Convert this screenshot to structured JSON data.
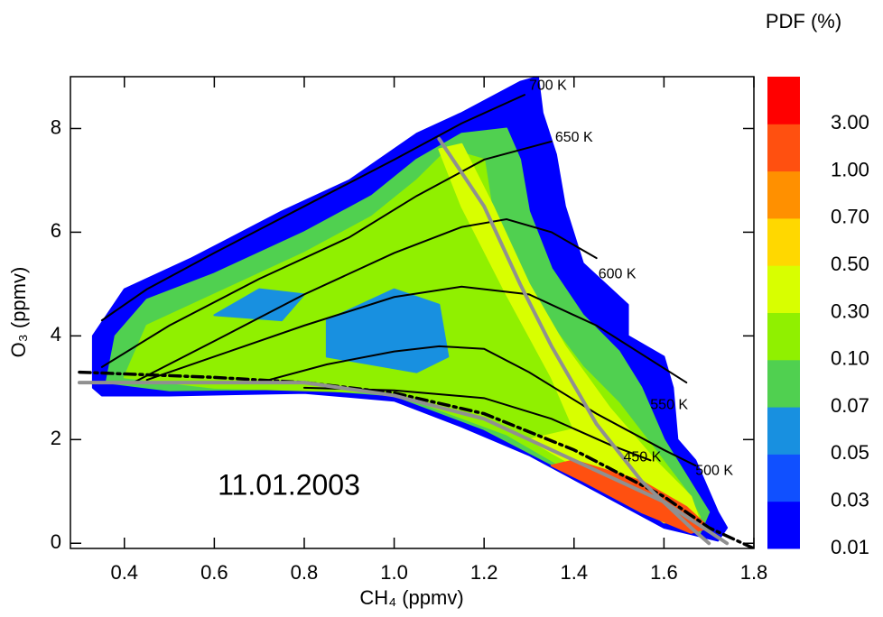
{
  "chart_data": {
    "type": "contour",
    "annotation": "11.01.2003",
    "x_label": "CH₄ (ppmv)",
    "y_label": "O₃ (ppmv)",
    "xlim": [
      0.28,
      1.8
    ],
    "ylim": [
      -0.1,
      9
    ],
    "xticks": [
      0.4,
      0.6,
      0.8,
      {
        "value": 1.0,
        "label": "1.0"
      },
      1.2,
      1.4,
      1.6,
      1.8
    ],
    "yticks": [
      0,
      2,
      4,
      6,
      8
    ],
    "colorbar": {
      "title": "PDF (%)",
      "colors": [
        "#0000ff",
        "#1050ff",
        "#1890e0",
        "#50d050",
        "#90f000",
        "#d8ff00",
        "#ffd800",
        "#ff9000",
        "#ff5010",
        "#ff0000"
      ],
      "ticks": [
        0.01,
        0.03,
        0.05,
        0.07,
        {
          "value": 0.1,
          "label": "0.10"
        },
        {
          "value": 0.3,
          "label": "0.30"
        },
        {
          "value": 0.5,
          "label": "0.50"
        },
        {
          "value": 0.7,
          "label": "0.70"
        },
        {
          "value": 1,
          "label": "1.00"
        },
        {
          "value": 3,
          "label": "3.00"
        }
      ]
    },
    "regions": [
      {
        "color": "#0000ff",
        "x": [
          0.33,
          0.33,
          0.4,
          0.55,
          0.75,
          0.9,
          1.05,
          1.15,
          1.28,
          1.32,
          1.33,
          1.36,
          1.38,
          1.42,
          1.52,
          1.52,
          1.6,
          1.62,
          1.63,
          1.67,
          1.7,
          1.72,
          1.74,
          1.72,
          1.6,
          1.45,
          1.3,
          1.15,
          1.0,
          0.8,
          0.5,
          0.35
        ],
        "y": [
          3.0,
          4.0,
          4.9,
          5.5,
          6.4,
          7.0,
          7.9,
          8.3,
          8.9,
          9.0,
          8.3,
          7.5,
          6.5,
          5.4,
          4.6,
          4.0,
          3.6,
          3.0,
          2.0,
          1.6,
          1.0,
          0.6,
          0.3,
          0.05,
          0.3,
          1.0,
          1.7,
          2.25,
          2.75,
          2.9,
          2.85,
          2.85
        ]
      },
      {
        "color": "#50d050",
        "x": [
          0.36,
          0.38,
          0.45,
          0.6,
          0.8,
          0.95,
          1.05,
          1.15,
          1.25,
          1.28,
          1.3,
          1.35,
          1.42,
          1.5,
          1.55,
          1.6,
          1.65,
          1.7,
          1.68,
          1.55,
          1.4,
          1.2,
          1.0,
          0.8,
          0.5
        ],
        "y": [
          3.1,
          4.0,
          4.7,
          5.2,
          6.0,
          6.7,
          7.4,
          7.9,
          8.0,
          7.4,
          6.4,
          5.3,
          4.4,
          3.7,
          3.0,
          2.0,
          1.3,
          0.6,
          0.2,
          0.6,
          1.3,
          2.2,
          2.85,
          2.98,
          2.95
        ]
      },
      {
        "color": "#90f000",
        "x": [
          0.4,
          0.45,
          0.6,
          0.8,
          0.95,
          1.05,
          1.12,
          1.2,
          1.22,
          1.28,
          1.35,
          1.42,
          1.5,
          1.58,
          1.65,
          1.68,
          1.6,
          1.45,
          1.25,
          1.0,
          0.6
        ],
        "y": [
          3.2,
          4.2,
          4.8,
          5.6,
          6.3,
          7.0,
          7.6,
          7.4,
          6.3,
          5.2,
          4.2,
          3.4,
          2.7,
          1.8,
          1.0,
          0.5,
          0.5,
          1.1,
          2.1,
          2.9,
          3.0
        ]
      },
      {
        "color": "#1890e0",
        "x": [
          0.85,
          0.85,
          1.0,
          1.1,
          1.12,
          1.05
        ],
        "y": [
          3.6,
          4.3,
          4.9,
          4.6,
          3.6,
          3.3
        ]
      },
      {
        "color": "#1890e0",
        "x": [
          0.6,
          0.7,
          0.8,
          0.75
        ],
        "y": [
          4.4,
          4.9,
          4.8,
          4.3
        ]
      },
      {
        "color": "#d8ff00",
        "x": [
          1.1,
          1.15,
          1.22,
          1.3,
          1.38,
          1.48,
          1.58,
          1.66,
          1.68,
          1.6,
          1.5,
          1.4,
          1.3,
          1.4,
          1.35,
          1.25,
          1.15
        ],
        "y": [
          7.6,
          7.7,
          6.5,
          5.0,
          3.8,
          2.6,
          1.6,
          0.9,
          0.4,
          0.4,
          1.0,
          1.5,
          2.0,
          2.2,
          3.2,
          4.8,
          6.5
        ]
      },
      {
        "color": "#ff5010",
        "x": [
          1.4,
          1.55,
          1.65,
          1.7,
          1.66,
          1.55,
          1.42,
          1.35
        ],
        "y": [
          1.6,
          1.2,
          0.7,
          0.3,
          0.2,
          0.6,
          1.2,
          1.5
        ]
      }
    ],
    "lines": [
      {
        "name": "700 K",
        "color": "#000000",
        "x": [
          0.35,
          0.45,
          0.6,
          0.8,
          1.0,
          1.15,
          1.29
        ],
        "y": [
          4.3,
          4.9,
          5.6,
          6.5,
          7.4,
          8.1,
          8.65
        ]
      },
      {
        "name": "650 K",
        "color": "#000000",
        "x": [
          0.35,
          0.5,
          0.7,
          0.9,
          1.05,
          1.2,
          1.35
        ],
        "y": [
          3.4,
          4.2,
          5.1,
          5.9,
          6.7,
          7.4,
          7.75
        ]
      },
      {
        "name": "600 K",
        "color": "#000000",
        "x": [
          0.42,
          0.6,
          0.8,
          1.0,
          1.15,
          1.25,
          1.35,
          1.45
        ],
        "y": [
          3.1,
          3.9,
          4.8,
          5.6,
          6.1,
          6.25,
          6.0,
          5.5
        ]
      },
      {
        "name": "550 K",
        "color": "#000000",
        "x": [
          0.45,
          0.6,
          0.8,
          1.0,
          1.15,
          1.3,
          1.45,
          1.65
        ],
        "y": [
          3.15,
          3.6,
          4.2,
          4.75,
          4.95,
          4.8,
          4.2,
          3.1
        ]
      },
      {
        "name": "500 K",
        "color": "#000000",
        "x": [
          0.7,
          0.85,
          1.0,
          1.1,
          1.2,
          1.3,
          1.45,
          1.6,
          1.67
        ],
        "y": [
          3.1,
          3.45,
          3.7,
          3.8,
          3.75,
          3.3,
          2.5,
          1.8,
          1.5
        ]
      },
      {
        "name": "450 K",
        "color": "#000000",
        "x": [
          0.8,
          1.0,
          1.2,
          1.35,
          1.48,
          1.57
        ],
        "y": [
          3.0,
          2.95,
          2.8,
          2.4,
          1.9,
          1.6
        ]
      },
      {
        "color": "#000000",
        "dash": true,
        "x": [
          0.3,
          0.6,
          0.8,
          1.0,
          1.2,
          1.4,
          1.6,
          1.7,
          1.8
        ],
        "y": [
          3.3,
          3.2,
          3.1,
          2.9,
          2.5,
          1.8,
          0.9,
          0.3,
          -0.1
        ]
      },
      {
        "color": "#909090",
        "x": [
          0.3,
          0.8,
          1.0,
          1.2,
          1.4,
          1.6,
          1.74
        ],
        "y": [
          3.1,
          3.1,
          2.85,
          2.4,
          1.6,
          0.8,
          0.0
        ]
      },
      {
        "color": "#909090",
        "x": [
          1.1,
          1.2,
          1.28,
          1.35,
          1.45,
          1.55,
          1.66,
          1.7
        ],
        "y": [
          7.8,
          6.5,
          5.0,
          3.8,
          2.3,
          1.2,
          0.3,
          0.0
        ]
      }
    ]
  }
}
